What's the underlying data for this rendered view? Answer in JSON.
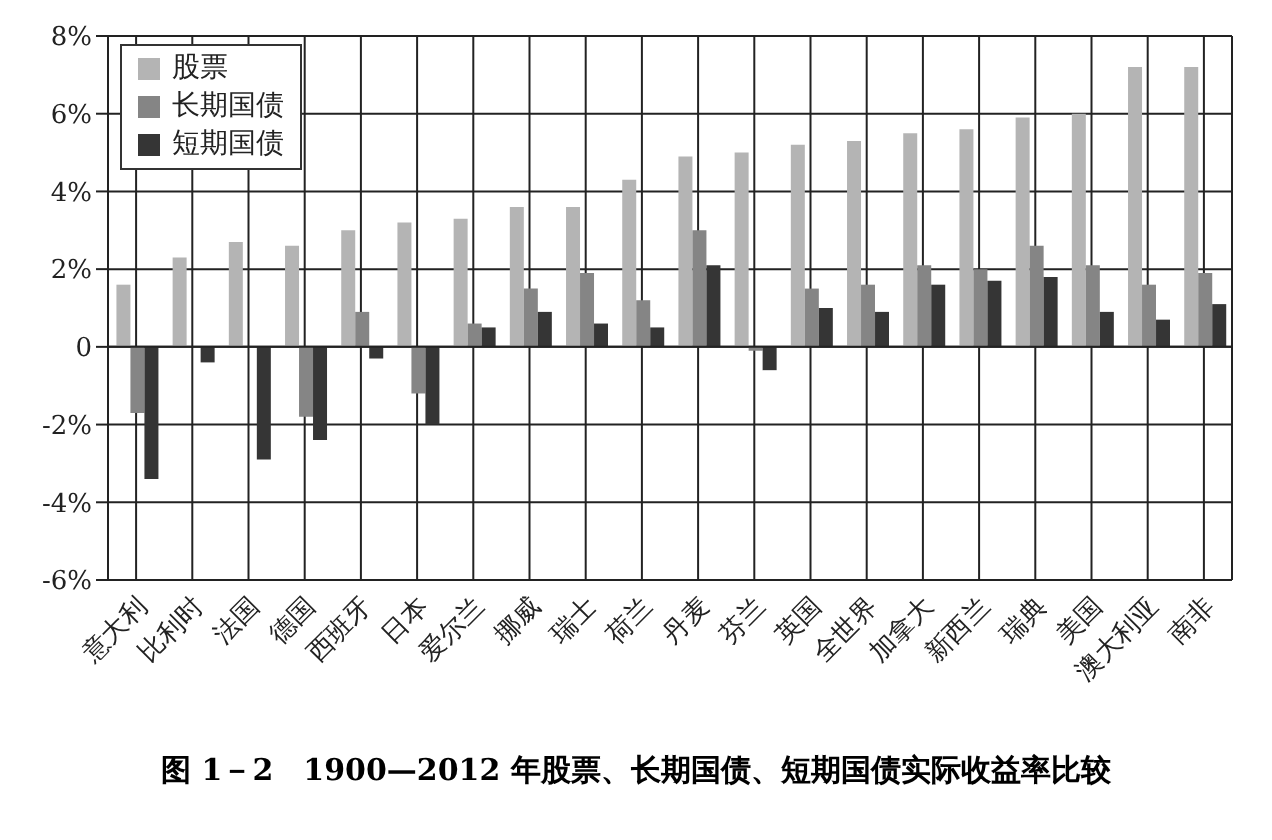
{
  "chart_data": {
    "type": "bar",
    "title": "图 1－2　1900—2012 年股票、长期国债、短期国债实际收益率比较",
    "categories": [
      "意大利",
      "比利时",
      "法国",
      "德国",
      "西班牙",
      "日本",
      "爱尔兰",
      "挪威",
      "瑞士",
      "荷兰",
      "丹麦",
      "芬兰",
      "英国",
      "全世界",
      "加拿大",
      "新西兰",
      "瑞典",
      "美国",
      "澳大利亚",
      "南非"
    ],
    "series": [
      {
        "name": "股票",
        "color": "#b4b4b4",
        "values": [
          1.6,
          2.3,
          2.7,
          2.6,
          3.0,
          3.2,
          3.3,
          3.6,
          3.6,
          4.3,
          4.9,
          5.0,
          5.2,
          5.3,
          5.5,
          5.6,
          5.9,
          6.0,
          7.2,
          7.2
        ]
      },
      {
        "name": "长期国债",
        "color": "#858585",
        "values": [
          -1.7,
          0,
          0,
          -1.8,
          0.9,
          -1.2,
          0.6,
          1.5,
          1.9,
          1.2,
          3.0,
          -0.1,
          1.5,
          1.6,
          2.1,
          2.0,
          2.6,
          2.1,
          1.6,
          1.9
        ]
      },
      {
        "name": "短期国债",
        "color": "#353535",
        "values": [
          -3.4,
          -0.4,
          -2.9,
          -2.4,
          -0.3,
          -2.0,
          0.5,
          0.9,
          0.6,
          0.5,
          2.1,
          -0.6,
          1.0,
          0.9,
          1.6,
          1.7,
          1.8,
          0.9,
          0.7,
          1.1
        ]
      }
    ],
    "ylim": [
      -6,
      8
    ],
    "yticks": [
      {
        "value": -6,
        "label": "-6%"
      },
      {
        "value": -4,
        "label": "-4%"
      },
      {
        "value": -2,
        "label": "-2%"
      },
      {
        "value": 0,
        "label": "0"
      },
      {
        "value": 2,
        "label": "2%"
      },
      {
        "value": 4,
        "label": "4%"
      },
      {
        "value": 6,
        "label": "6%"
      },
      {
        "value": 8,
        "label": "8%"
      }
    ],
    "grid": true,
    "legend": "top left"
  }
}
